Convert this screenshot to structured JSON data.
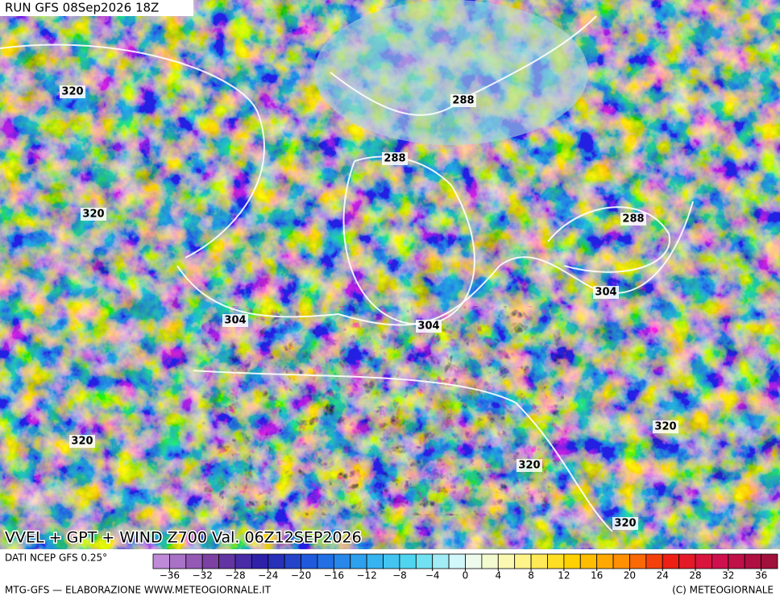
{
  "header": {
    "run": "RUN GFS 08Sep2026 18Z",
    "title": "VVEL + GPT + WIND Z700 Val. 06Z12SEP2026"
  },
  "contours": [
    "320",
    "320",
    "320",
    "288",
    "288",
    "288",
    "304",
    "304",
    "304",
    "320",
    "320",
    "320"
  ],
  "colorbar": {
    "source": "DATI NCEP GFS 0.25°",
    "range": [
      -38,
      38
    ],
    "step": 2,
    "ticks": [
      -36,
      -32,
      -28,
      -24,
      -20,
      -16,
      -12,
      -8,
      -4,
      0,
      4,
      8,
      12,
      16,
      20,
      24,
      28,
      32,
      36
    ],
    "tick_labels": [
      "−36",
      "−32",
      "−28",
      "−24",
      "−20",
      "−16",
      "−12",
      "−8",
      "−4",
      "0",
      "4",
      "8",
      "12",
      "16",
      "20",
      "24",
      "28",
      "32",
      "36"
    ],
    "colors": [
      "#c08ad8",
      "#7a3fa0",
      "#2a1fa8",
      "#1f5ee0",
      "#2fa8f0",
      "#55dcf0",
      "#eafcfc",
      "#fff8a0",
      "#ffd800",
      "#ff9a00",
      "#f02010",
      "#d01050",
      "#a0103a"
    ]
  },
  "footer": {
    "left": "MTG-GFS — ELABORAZIONE WWW.METEOGIORNALE.IT",
    "right": "(C) METEOGIORNALE"
  }
}
